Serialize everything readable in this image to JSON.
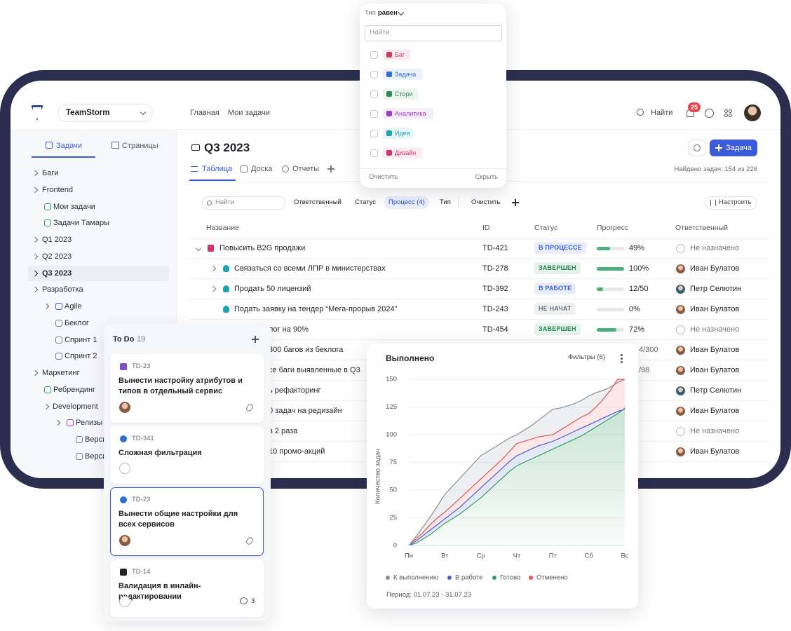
{
  "header": {
    "brand": "TeamStorm",
    "nav": [
      "Главная",
      "Мои задачи"
    ],
    "search": "Найти",
    "notifications": "25"
  },
  "sidebar": {
    "tabs": [
      "Задачи",
      "Страницы"
    ],
    "items": [
      "Баги",
      "Frontend",
      "Мои задачи",
      "Задачи Тамары",
      "Q1 2023",
      "Q2 2023",
      "Q3 2023",
      "Разработка",
      "Agile",
      "Беклог",
      "Спринт 1",
      "Спринт 2",
      "Маркетинг",
      "Ребрендинг",
      "Development",
      "Релизы",
      "Верси",
      "Верси"
    ]
  },
  "page": {
    "title": "Q3 2023",
    "views": [
      "Таблица",
      "Доска",
      "Отчеты"
    ],
    "found": "Найдено задач: 154 из 226",
    "new_task": "Задача"
  },
  "filters": {
    "search": "Найти",
    "chips": [
      "Ответственный",
      "Статус",
      "Процесс (4)",
      "Тип"
    ],
    "clear": "Очистить",
    "configure": "Настроить"
  },
  "table": {
    "columns": [
      "Название",
      "ID",
      "Статус",
      "Прогресс",
      "Ответственный"
    ],
    "rows": [
      {
        "name": "Повысить B2G продажи",
        "icon_color": "#d6336c",
        "id": "TD-421",
        "status": "В ПРОЦЕССЕ",
        "status_color": "#3b5bdb",
        "progress": {
          "value": 49,
          "label": "49%"
        },
        "assignee": "Не назначено",
        "avatar_color": null
      },
      {
        "name": "Связаться со всеми ЛПР в министерствах",
        "icon_color": "#1aa3b5",
        "id": "TD-278",
        "status": "ЗАВЕРШЕН",
        "status_color": "#1e8a4c",
        "progress": {
          "value": 100,
          "label": "100%"
        },
        "assignee": "Иван Булатов",
        "avatar_color": "#8a5a44"
      },
      {
        "name": "Продать 50 лицензий",
        "icon_color": "#1aa3b5",
        "id": "TD-392",
        "status": "В РАБОТЕ",
        "status_color": "#3b5bdb",
        "progress": {
          "value": 24,
          "label": "12/50"
        },
        "assignee": "Петр Селютин",
        "avatar_color": "#2f5d7a"
      },
      {
        "name": "Подать заявку на тендер “Мега-прорыв 2024”",
        "icon_color": "#1aa3b5",
        "id": "TD-243",
        "status": "НЕ НАЧАТ",
        "status_color": "#6b7280",
        "progress": {
          "value": 0,
          "label": "0%"
        },
        "assignee": "Иван Булатов",
        "avatar_color": "#8a5a44"
      },
      {
        "name": "лог на 90%",
        "id": "TD-454",
        "status": "ЗАВЕРШЕН",
        "status_color": "#1e8a4c",
        "progress": {
          "value": 72,
          "label": "72%"
        },
        "assignee": "Не назначено",
        "avatar_color": null
      },
      {
        "name": "300 багов из беклога",
        "progress": {
          "label": "4/300"
        },
        "assignee": "Иван Булатов",
        "avatar_color": "#8a5a44"
      },
      {
        "name": "се баги выявленные в Q3",
        "progress": {
          "label": "/98"
        },
        "assignee": "Иван Булатов",
        "avatar_color": "#8a5a44"
      },
      {
        "name": "ь рефакторинг",
        "assignee": "Петр Селютин",
        "avatar_color": "#2f5d7a"
      },
      {
        "name": "0 задач на редизайн",
        "assignee": "Иван Булатов",
        "avatar_color": "#8a5a44"
      },
      {
        "name": "в 2 раза",
        "assignee": "Не назначено",
        "avatar_color": null
      },
      {
        "name": "10 промо-акций",
        "assignee": "Иван Булатов",
        "avatar_color": "#8a5a44"
      }
    ]
  },
  "type_filter": {
    "field": "Тип",
    "operator": "равен",
    "search": "Найти",
    "options": [
      {
        "label": "Баг",
        "color": "#d63a5a"
      },
      {
        "label": "Задача",
        "color": "#2f6fd6"
      },
      {
        "label": "Стори",
        "color": "#2e8b57"
      },
      {
        "label": "Аналитика",
        "color": "#9c3fc9"
      },
      {
        "label": "Идея",
        "color": "#1aa3b5"
      },
      {
        "label": "Дизайн",
        "color": "#d6336c"
      }
    ],
    "clear": "Очистить",
    "hide": "Скрыть"
  },
  "board": {
    "column": "To Do",
    "count": 19,
    "cards": [
      {
        "id": "TD-23",
        "title": "Вынести настройку атрибутов и типов в отдельный сервис",
        "type_color": "#7c4dcc"
      },
      {
        "id": "TD-341",
        "title": "Сложная фильтрация",
        "type_color": "#2f6fd6"
      },
      {
        "id": "TD-23",
        "title": "Вынести общие настройки для всех сервисов",
        "type_color": "#2f6fd6"
      },
      {
        "id": "TD-14",
        "title": "Валидация в инлайн-редактировании",
        "type_color": "#222222",
        "comments": 3
      }
    ]
  },
  "chart": {
    "type": "line",
    "title": "Выполнено",
    "filters": "Фильтры (6)",
    "y_label": "Количество задач",
    "categories": [
      "Пн",
      null,
      null,
      null,
      null,
      "Вт",
      null,
      null,
      null,
      null,
      "Ср",
      null,
      null,
      null,
      null,
      "Чт",
      null,
      null,
      null,
      null,
      "Пт",
      null,
      null,
      null,
      null,
      "Сб",
      null,
      null,
      null,
      null,
      "Вс"
    ],
    "series": [
      {
        "name": "К выполнению",
        "color": "#8a8f96",
        "values": [
          0,
          8,
          17,
          26,
          36,
          46,
          53,
          60,
          67,
          74,
          81,
          85,
          89,
          93,
          97,
          100,
          104,
          108,
          113,
          118,
          123,
          124,
          126,
          128,
          131,
          135,
          138,
          140,
          143,
          147,
          150
        ]
      },
      {
        "name": "В работе",
        "color": "#4a5fd0",
        "values": [
          0,
          4,
          9,
          14,
          19,
          24,
          29,
          34,
          40,
          46,
          52,
          58,
          64,
          70,
          76,
          81,
          84,
          87,
          90,
          92,
          94,
          97,
          100,
          103,
          106,
          109,
          112,
          115,
          118,
          121,
          123
        ]
      },
      {
        "name": "Готово",
        "color": "#3a9d63",
        "values": [
          0,
          2,
          6,
          10,
          15,
          20,
          24,
          28,
          33,
          38,
          43,
          49,
          55,
          61,
          67,
          72,
          75,
          78,
          81,
          84,
          87,
          90,
          93,
          96,
          99,
          103,
          107,
          111,
          115,
          119,
          124
        ]
      },
      {
        "name": "Отменено",
        "color": "#e0565b",
        "values": [
          0,
          6,
          12,
          19,
          25,
          30,
          36,
          42,
          48,
          54,
          60,
          66,
          72,
          78,
          85,
          92,
          94,
          96,
          98,
          99,
          100,
          104,
          108,
          112,
          116,
          119,
          125,
          132,
          140,
          150,
          150
        ]
      }
    ],
    "ylim": [
      0,
      150
    ],
    "yticks": [
      0,
      25,
      50,
      75,
      100,
      125,
      150
    ],
    "grid": true,
    "period": "Период: 01.07.23 - 31.07.23"
  }
}
